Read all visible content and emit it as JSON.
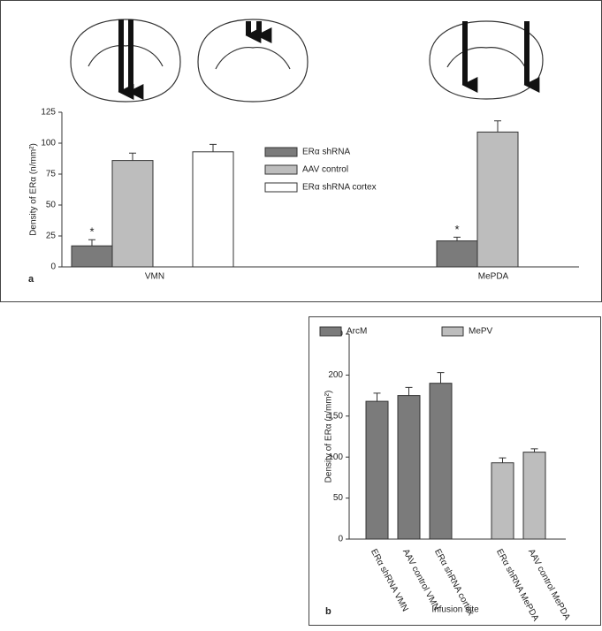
{
  "chart_data": [
    {
      "type": "bar",
      "panel": "a",
      "ylabel": "Density of ERα (n/mm²)",
      "categories": [
        "VMN",
        "MePDA"
      ],
      "series": [
        {
          "name": "ERα shRNA",
          "color": "#7b7b7b",
          "values": [
            17,
            21
          ],
          "errors": [
            5,
            3
          ]
        },
        {
          "name": "AAV control",
          "color": "#bdbdbd",
          "values": [
            86,
            109
          ],
          "errors": [
            6,
            9
          ]
        },
        {
          "name": "ERα shRNA cortex",
          "color": "#ffffff",
          "values": [
            93,
            null
          ],
          "errors": [
            6,
            null
          ]
        }
      ],
      "annotations": [
        "*",
        "*"
      ],
      "ylim": [
        0,
        125
      ],
      "yticks": [
        0,
        25,
        50,
        75,
        100,
        125
      ]
    },
    {
      "type": "bar",
      "panel": "b",
      "ylabel": "Density of ERα (n/mm²)",
      "xlabel": "Infusion site",
      "categories": [
        "ERα shRNA VMN",
        "AAV control VMN",
        "ERα shRNA cortex",
        "ERα shRNA MePDA",
        "AAV control MePDA"
      ],
      "series": [
        {
          "name": "ArcM",
          "color": "#7b7b7b",
          "values": [
            168,
            175,
            190,
            null,
            null
          ],
          "errors": [
            10,
            10,
            13,
            null,
            null
          ]
        },
        {
          "name": "MePV",
          "color": "#bdbdbd",
          "values": [
            null,
            null,
            null,
            93,
            106
          ],
          "errors": [
            null,
            null,
            null,
            6,
            4
          ]
        }
      ],
      "ylim": [
        0,
        250
      ],
      "yticks": [
        0,
        50,
        100,
        150,
        200,
        250
      ]
    }
  ]
}
